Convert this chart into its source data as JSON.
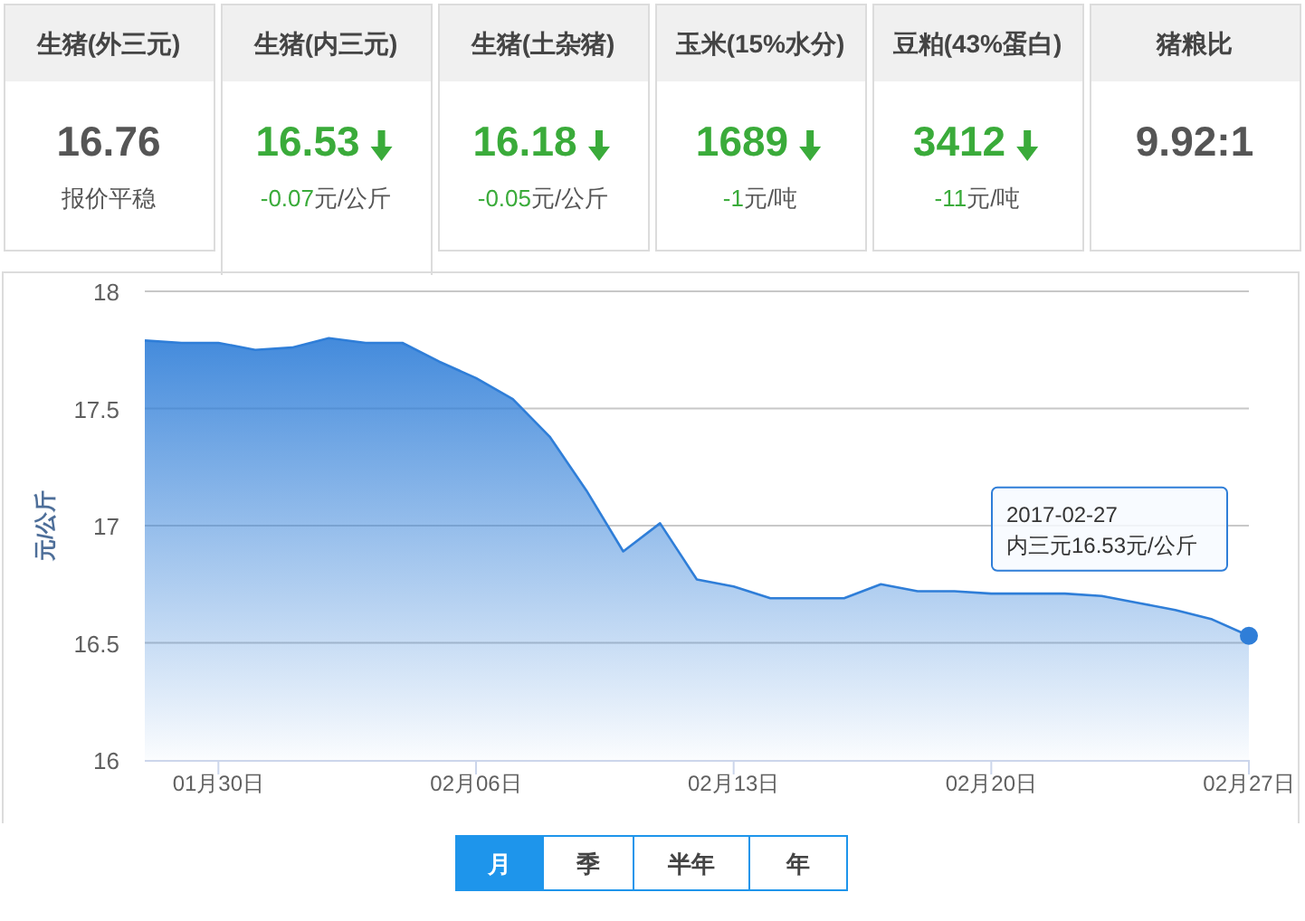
{
  "chart_data": [
    {
      "type": "other",
      "title": "生猪(外三元)",
      "subtitle": "16.76",
      "annotations": [
        "报价平稳"
      ]
    },
    {
      "type": "other",
      "title": "生猪(内三元)",
      "subtitle": "16.53",
      "annotations": [
        "-0.07元/公斤"
      ],
      "color": "#3aab3a"
    },
    {
      "type": "other",
      "title": "生猪(土杂猪)",
      "subtitle": "16.18",
      "annotations": [
        "-0.05元/公斤"
      ],
      "color": "#3aab3a"
    },
    {
      "type": "other",
      "title": "玉米(15%水分)",
      "subtitle": "1689",
      "annotations": [
        "-1元/吨"
      ],
      "color": "#3aab3a"
    },
    {
      "type": "other",
      "title": "豆粕(43%蛋白)",
      "subtitle": "3412",
      "annotations": [
        "-11元/吨"
      ],
      "color": "#3aab3a"
    },
    {
      "type": "other",
      "title": "猪粮比",
      "subtitle": "9.92:1"
    },
    {
      "type": "area",
      "ylabel": "元/公斤",
      "x": [
        "2017-01-28",
        "2017-01-29",
        "2017-01-30",
        "2017-01-31",
        "2017-02-01",
        "2017-02-02",
        "2017-02-03",
        "2017-02-04",
        "2017-02-05",
        "2017-02-06",
        "2017-02-07",
        "2017-02-08",
        "2017-02-09",
        "2017-02-10",
        "2017-02-11",
        "2017-02-12",
        "2017-02-13",
        "2017-02-14",
        "2017-02-15",
        "2017-02-16",
        "2017-02-17",
        "2017-02-18",
        "2017-02-19",
        "2017-02-20",
        "2017-02-21",
        "2017-02-22",
        "2017-02-23",
        "2017-02-24",
        "2017-02-25",
        "2017-02-26",
        "2017-02-27"
      ],
      "series": [
        {
          "color": "#2f7ed8",
          "values": [
            17.79,
            17.78,
            17.78,
            17.75,
            17.76,
            17.8,
            17.78,
            17.78,
            17.7,
            17.63,
            17.54,
            17.38,
            17.15,
            16.89,
            17.01,
            16.77,
            16.74,
            16.69,
            16.69,
            16.69,
            16.75,
            16.72,
            16.72,
            16.71,
            16.71,
            16.71,
            16.7,
            16.67,
            16.64,
            16.6,
            16.53
          ]
        }
      ],
      "xlim": [
        "2017-01-28",
        "2017-02-27"
      ],
      "ylim": [
        16,
        18
      ],
      "yticks": [
        16,
        16.5,
        17,
        17.5,
        18
      ],
      "xticks": [
        {
          "value": "2017-01-30",
          "label": "01月30日"
        },
        {
          "value": "2017-02-06",
          "label": "02月06日"
        },
        {
          "value": "2017-02-13",
          "label": "02月13日"
        },
        {
          "value": "2017-02-20",
          "label": "02月20日"
        },
        {
          "value": "2017-02-27",
          "label": "02月27日"
        }
      ],
      "grid": "y",
      "annotations": [
        "2017-02-27\n内三元16.53元/公斤"
      ]
    },
    {
      "type": "other",
      "annotations": [
        "月",
        "季",
        "半年",
        "年"
      ]
    }
  ]
}
